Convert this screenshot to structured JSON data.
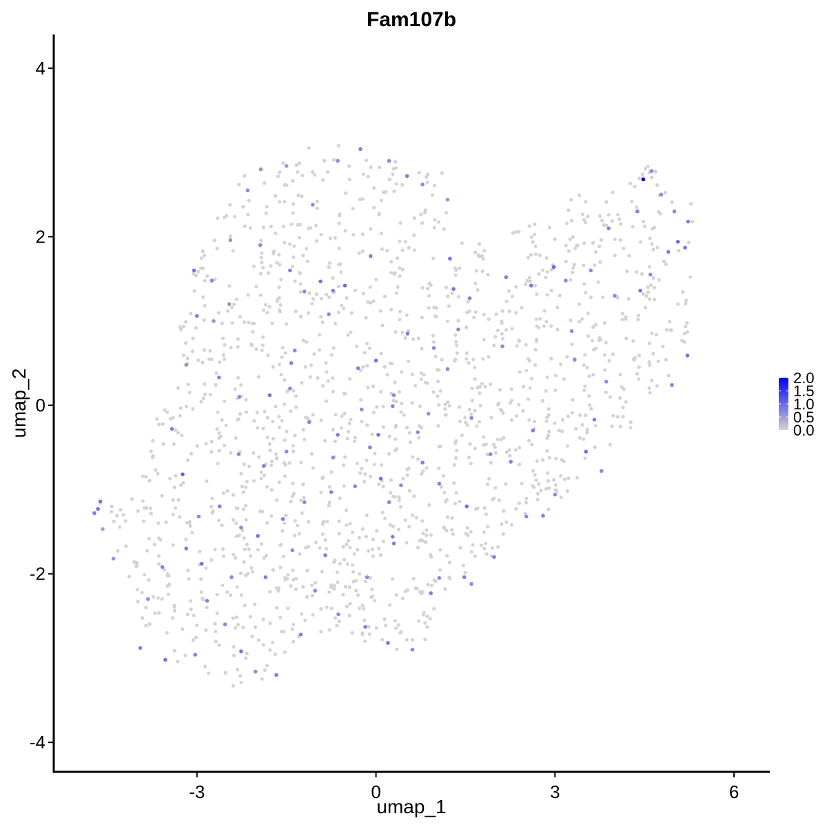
{
  "chart_data": {
    "type": "scatter",
    "title": "Fam107b",
    "xlabel": "umap_1",
    "ylabel": "umap_2",
    "xlim": [
      -5.4,
      6.6
    ],
    "ylim": [
      -4.35,
      4.4
    ],
    "xticks": [
      -3,
      0,
      3,
      6
    ],
    "yticks": [
      -4,
      -2,
      0,
      2,
      4
    ],
    "xtick_labels": [
      "-3",
      "0",
      "3",
      "6"
    ],
    "ytick_labels": [
      "-4",
      "-2",
      "0",
      "2",
      "4"
    ],
    "grid": false,
    "legend_position": "right",
    "color_scale": {
      "low_color": "#d3d3d3",
      "high_color": "#0000ff",
      "min": 0.0,
      "max": 2.0,
      "ticks": [
        2.0,
        1.5,
        1.0,
        0.5,
        0.0
      ],
      "tick_labels": [
        "2.0",
        "1.5",
        "1.0",
        "0.5",
        "0.0"
      ]
    },
    "points": [
      {
        "x": 4.48,
        "y": 2.68,
        "value": 2.0
      },
      {
        "x": -4.62,
        "y": -1.14,
        "value": 0.9
      },
      {
        "x": -4.66,
        "y": -1.23,
        "value": 0.9
      },
      {
        "x": -4.72,
        "y": -1.28,
        "value": 0.8
      },
      {
        "x": -4.58,
        "y": -1.47,
        "value": 0.5
      },
      {
        "x": -4.4,
        "y": -1.82,
        "value": 0.6
      },
      {
        "x": -3.24,
        "y": -0.82,
        "value": 1.1
      },
      {
        "x": -3.42,
        "y": -0.28,
        "value": 0.8
      },
      {
        "x": -3.05,
        "y": 1.6,
        "value": 0.9
      },
      {
        "x": -2.75,
        "y": 1.48,
        "value": 0.7
      },
      {
        "x": -2.44,
        "y": 1.96,
        "value": 0.6
      },
      {
        "x": -2.15,
        "y": 2.55,
        "value": 0.7
      },
      {
        "x": -1.93,
        "y": 2.8,
        "value": 0.6
      },
      {
        "x": -1.5,
        "y": 2.84,
        "value": 0.6
      },
      {
        "x": -1.06,
        "y": 2.38,
        "value": 0.7
      },
      {
        "x": -0.64,
        "y": 2.9,
        "value": 0.7
      },
      {
        "x": -0.26,
        "y": 3.04,
        "value": 0.8
      },
      {
        "x": 0.22,
        "y": 2.9,
        "value": 0.7
      },
      {
        "x": 0.52,
        "y": 2.72,
        "value": 0.8
      },
      {
        "x": 0.78,
        "y": 2.62,
        "value": 0.7
      },
      {
        "x": 1.2,
        "y": 2.44,
        "value": 0.6
      },
      {
        "x": 1.24,
        "y": 1.74,
        "value": 0.9
      },
      {
        "x": -0.72,
        "y": 1.36,
        "value": 0.8
      },
      {
        "x": -0.93,
        "y": 1.47,
        "value": 0.9
      },
      {
        "x": -0.52,
        "y": 1.42,
        "value": 1.0
      },
      {
        "x": -0.79,
        "y": 1.08,
        "value": 0.7
      },
      {
        "x": -0.09,
        "y": 1.77,
        "value": 0.8
      },
      {
        "x": 0.0,
        "y": 0.53,
        "value": 0.9
      },
      {
        "x": -0.3,
        "y": 0.44,
        "value": 0.8
      },
      {
        "x": -1.36,
        "y": 0.65,
        "value": 0.7
      },
      {
        "x": -1.42,
        "y": 0.5,
        "value": 0.8
      },
      {
        "x": -1.2,
        "y": 1.35,
        "value": 0.7
      },
      {
        "x": -1.44,
        "y": 1.6,
        "value": 0.8
      },
      {
        "x": -1.94,
        "y": 1.9,
        "value": 0.7
      },
      {
        "x": -2.46,
        "y": 1.2,
        "value": 0.6
      },
      {
        "x": -3.0,
        "y": 1.06,
        "value": 0.8
      },
      {
        "x": -2.63,
        "y": 0.33,
        "value": 0.7
      },
      {
        "x": -2.29,
        "y": 0.1,
        "value": 0.7
      },
      {
        "x": -1.78,
        "y": 0.12,
        "value": 0.9
      },
      {
        "x": -1.44,
        "y": 0.2,
        "value": 0.7
      },
      {
        "x": -1.12,
        "y": -0.2,
        "value": 0.7
      },
      {
        "x": -0.64,
        "y": -0.35,
        "value": 0.8
      },
      {
        "x": -0.24,
        "y": -0.05,
        "value": 0.7
      },
      {
        "x": 0.28,
        "y": -0.01,
        "value": 0.8
      },
      {
        "x": 0.04,
        "y": -0.35,
        "value": 0.9
      },
      {
        "x": -0.1,
        "y": -0.5,
        "value": 0.8
      },
      {
        "x": 0.7,
        "y": -0.32,
        "value": 0.7
      },
      {
        "x": 0.97,
        "y": 0.68,
        "value": 0.7
      },
      {
        "x": 0.53,
        "y": 0.85,
        "value": 0.8
      },
      {
        "x": 1.38,
        "y": 0.9,
        "value": 0.7
      },
      {
        "x": 1.57,
        "y": 1.27,
        "value": 0.8
      },
      {
        "x": 1.3,
        "y": 1.38,
        "value": 0.9
      },
      {
        "x": 2.18,
        "y": 1.52,
        "value": 0.8
      },
      {
        "x": 2.6,
        "y": 1.42,
        "value": 0.9
      },
      {
        "x": 2.98,
        "y": 1.64,
        "value": 1.0
      },
      {
        "x": 3.18,
        "y": 1.48,
        "value": 0.7
      },
      {
        "x": 3.6,
        "y": 1.6,
        "value": 0.7
      },
      {
        "x": 3.9,
        "y": 2.1,
        "value": 0.8
      },
      {
        "x": 4.0,
        "y": 1.3,
        "value": 0.7
      },
      {
        "x": 4.43,
        "y": 1.36,
        "value": 0.9
      },
      {
        "x": 4.6,
        "y": 1.55,
        "value": 0.7
      },
      {
        "x": 4.9,
        "y": 1.82,
        "value": 0.8
      },
      {
        "x": 5.06,
        "y": 1.94,
        "value": 1.0
      },
      {
        "x": 5.18,
        "y": 1.87,
        "value": 0.9
      },
      {
        "x": 5.0,
        "y": 2.3,
        "value": 0.7
      },
      {
        "x": 5.23,
        "y": 2.18,
        "value": 0.8
      },
      {
        "x": 4.78,
        "y": 2.5,
        "value": 0.7
      },
      {
        "x": 4.38,
        "y": 2.3,
        "value": 0.8
      },
      {
        "x": 4.62,
        "y": 2.78,
        "value": 0.7
      },
      {
        "x": 5.22,
        "y": 0.59,
        "value": 0.9
      },
      {
        "x": 4.96,
        "y": 0.24,
        "value": 0.8
      },
      {
        "x": 3.86,
        "y": 0.28,
        "value": 0.7
      },
      {
        "x": 3.66,
        "y": -0.17,
        "value": 0.8
      },
      {
        "x": 3.78,
        "y": -0.78,
        "value": 0.7
      },
      {
        "x": 3.52,
        "y": -0.55,
        "value": 0.9
      },
      {
        "x": 2.63,
        "y": -0.3,
        "value": 0.8
      },
      {
        "x": 2.26,
        "y": -0.67,
        "value": 0.8
      },
      {
        "x": 1.92,
        "y": -0.58,
        "value": 0.7
      },
      {
        "x": 1.6,
        "y": -0.15,
        "value": 0.7
      },
      {
        "x": 1.06,
        "y": -0.93,
        "value": 0.8
      },
      {
        "x": 0.78,
        "y": -0.68,
        "value": 0.8
      },
      {
        "x": 0.42,
        "y": -0.95,
        "value": 0.7
      },
      {
        "x": 0.08,
        "y": -0.87,
        "value": 0.9
      },
      {
        "x": -0.35,
        "y": -0.96,
        "value": 0.7
      },
      {
        "x": -0.75,
        "y": -1.03,
        "value": 0.8
      },
      {
        "x": -1.2,
        "y": -1.15,
        "value": 0.7
      },
      {
        "x": -1.56,
        "y": -1.35,
        "value": 0.8
      },
      {
        "x": -1.98,
        "y": -1.55,
        "value": 0.9
      },
      {
        "x": -2.26,
        "y": -1.45,
        "value": 0.7
      },
      {
        "x": -2.62,
        "y": -1.2,
        "value": 0.8
      },
      {
        "x": -2.97,
        "y": -1.32,
        "value": 0.7
      },
      {
        "x": -3.18,
        "y": -1.7,
        "value": 0.8
      },
      {
        "x": -2.92,
        "y": -1.88,
        "value": 0.9
      },
      {
        "x": -3.58,
        "y": -1.92,
        "value": 0.8
      },
      {
        "x": -3.82,
        "y": -2.3,
        "value": 0.7
      },
      {
        "x": -3.95,
        "y": -2.88,
        "value": 0.8
      },
      {
        "x": -3.53,
        "y": -3.02,
        "value": 0.9
      },
      {
        "x": -3.03,
        "y": -2.96,
        "value": 0.8
      },
      {
        "x": -2.53,
        "y": -2.6,
        "value": 0.7
      },
      {
        "x": -2.26,
        "y": -2.92,
        "value": 0.9
      },
      {
        "x": -2.02,
        "y": -3.16,
        "value": 0.7
      },
      {
        "x": -1.67,
        "y": -3.2,
        "value": 0.8
      },
      {
        "x": -1.26,
        "y": -2.72,
        "value": 0.8
      },
      {
        "x": -1.02,
        "y": -2.2,
        "value": 0.7
      },
      {
        "x": -0.63,
        "y": -2.48,
        "value": 0.7
      },
      {
        "x": -0.18,
        "y": -2.63,
        "value": 0.8
      },
      {
        "x": 0.2,
        "y": -2.82,
        "value": 0.9
      },
      {
        "x": 0.61,
        "y": -2.9,
        "value": 0.7
      },
      {
        "x": 0.92,
        "y": -2.23,
        "value": 0.8
      },
      {
        "x": 1.06,
        "y": -2.05,
        "value": 0.7
      },
      {
        "x": 1.48,
        "y": -2.04,
        "value": 0.8
      },
      {
        "x": 1.6,
        "y": -2.12,
        "value": 0.7
      },
      {
        "x": 1.98,
        "y": -1.8,
        "value": 0.8
      },
      {
        "x": 2.52,
        "y": -1.32,
        "value": 0.7
      },
      {
        "x": 2.8,
        "y": -1.31,
        "value": 0.8
      },
      {
        "x": 3.0,
        "y": -1.06,
        "value": 0.7
      },
      {
        "x": 1.52,
        "y": -1.2,
        "value": 0.9
      },
      {
        "x": 0.3,
        "y": -1.64,
        "value": 0.8
      },
      {
        "x": 0.28,
        "y": -1.56,
        "value": 0.8
      },
      {
        "x": -0.15,
        "y": -2.04,
        "value": 0.7
      },
      {
        "x": -0.85,
        "y": -1.78,
        "value": 0.8
      },
      {
        "x": -1.4,
        "y": -1.72,
        "value": 0.7
      },
      {
        "x": -1.85,
        "y": -2.04,
        "value": 0.8
      },
      {
        "x": -2.42,
        "y": -2.04,
        "value": 0.7
      },
      {
        "x": -2.83,
        "y": -2.32,
        "value": 0.8
      },
      {
        "x": -2.3,
        "y": -0.58,
        "value": 0.7
      },
      {
        "x": -1.88,
        "y": -0.72,
        "value": 0.8
      },
      {
        "x": -1.5,
        "y": -0.55,
        "value": 0.7
      },
      {
        "x": 1.2,
        "y": 0.43,
        "value": 0.7
      },
      {
        "x": 2.12,
        "y": 0.7,
        "value": 0.7
      },
      {
        "x": 3.33,
        "y": 0.54,
        "value": 0.7
      },
      {
        "x": 3.28,
        "y": 0.88,
        "value": 0.7
      },
      {
        "x": -3.18,
        "y": 0.48,
        "value": 0.6
      },
      {
        "x": -2.72,
        "y": 1.0,
        "value": 0.6
      },
      {
        "x": 0.88,
        "y": -0.1,
        "value": 0.6
      },
      {
        "x": 0.3,
        "y": 0.12,
        "value": 0.7
      },
      {
        "x": 0.22,
        "y": -1.15,
        "value": 0.7
      },
      {
        "x": -0.72,
        "y": -0.62,
        "value": 0.7
      }
    ]
  }
}
